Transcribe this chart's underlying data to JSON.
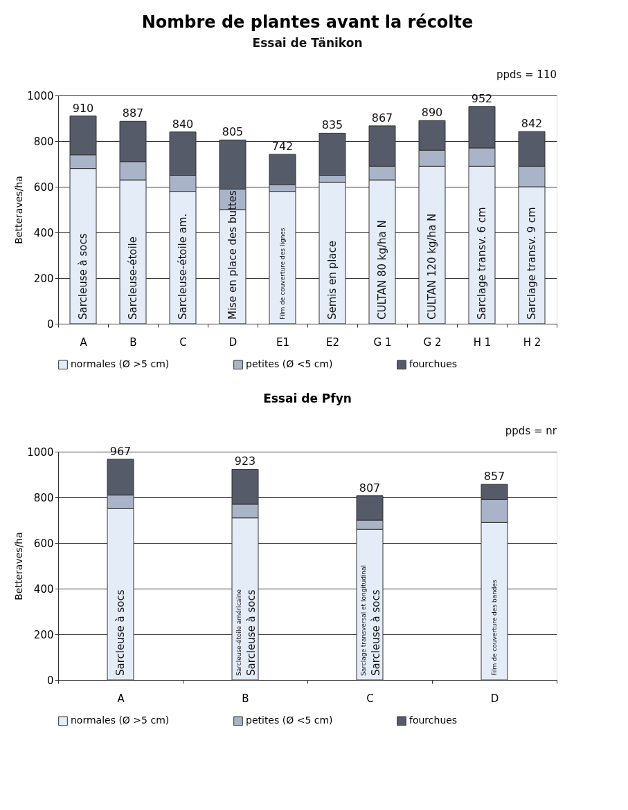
{
  "chart_data": [
    {
      "type": "bar",
      "title": "Nombre de plantes avant la récolte",
      "subtitle": "Essai de Tänikon",
      "ylabel": "Betteraves/ha",
      "stacked": true,
      "categories": [
        "A",
        "B",
        "C",
        "D",
        "E1",
        "E2",
        "G 1",
        "G 2",
        "H 1",
        "H 2"
      ],
      "series": [
        {
          "name": "normales (Ø >5 cm)",
          "color": "#e4ecf7",
          "values": [
            680,
            630,
            580,
            500,
            580,
            620,
            630,
            690,
            690,
            600
          ]
        },
        {
          "name": "petites (Ø <5 cm)",
          "color": "#a9b4c8",
          "values": [
            60,
            80,
            70,
            90,
            30,
            30,
            60,
            70,
            80,
            90
          ]
        },
        {
          "name": "fourchues",
          "color": "#555b68",
          "values": [
            170,
            177,
            190,
            215,
            132,
            185,
            177,
            130,
            182,
            152
          ]
        }
      ],
      "totals": [
        "910",
        "887",
        "840",
        "805",
        "742",
        "835",
        "867",
        "890",
        "952",
        "842"
      ],
      "ylim": [
        0,
        1000
      ],
      "yticks": [
        0,
        200,
        400,
        600,
        800,
        1000
      ],
      "grid": "y",
      "legend": "bottom",
      "annotations": [
        "ppds = 110",
        {
          "text": "Sarcleuse à socs",
          "x": "A",
          "y": 0
        },
        {
          "text": "Sarcleuse-étoile",
          "x": "B",
          "y": 0
        },
        {
          "text": "Sarcleuse-étoile am.",
          "x": "C",
          "y": 0
        },
        {
          "text": "Mise en place des buttes",
          "x": "D",
          "y": 0
        },
        {
          "text": "Film de couverture des lignes",
          "x": "E1",
          "y": 0
        },
        {
          "text": "Semis en place",
          "x": "E2",
          "y": 0
        },
        {
          "text": "CULTAN 80 kg/ha N",
          "x": "G 1",
          "y": 0
        },
        {
          "text": "CULTAN 120 kg/ha N",
          "x": "G 2",
          "y": 0
        },
        {
          "text": "Sarclage transv. 6 cm",
          "x": "H 1",
          "y": 0
        },
        {
          "text": "Sarclage transv. 9 cm",
          "x": "H 2",
          "y": 0
        }
      ]
    },
    {
      "type": "bar",
      "title": "Essai de Pfyn",
      "ylabel": "Betteraves/ha",
      "stacked": true,
      "categories": [
        "A",
        "B",
        "C",
        "D"
      ],
      "series": [
        {
          "name": "normales (Ø >5 cm)",
          "color": "#e4ecf7",
          "values": [
            750,
            710,
            660,
            690
          ]
        },
        {
          "name": "petites (Ø <5 cm)",
          "color": "#a9b4c8",
          "values": [
            60,
            60,
            40,
            100
          ]
        },
        {
          "name": "fourchues",
          "color": "#555b68",
          "values": [
            157,
            153,
            107,
            67
          ]
        }
      ],
      "totals": [
        "967",
        "923",
        "807",
        "857"
      ],
      "ylim": [
        0,
        1000
      ],
      "yticks": [
        0,
        200,
        400,
        600,
        800,
        1000
      ],
      "grid": "y",
      "legend": "bottom",
      "annotations": [
        "ppds = nr",
        {
          "text": "Sarcleuse à socs",
          "x": "A",
          "y": 0
        },
        {
          "text": "Sarcleuse-étoile américaine",
          "x": "B",
          "y": 0
        },
        {
          "text": "Sarcleuse à socs",
          "x": "B",
          "y": 0
        },
        {
          "text": "Sarclage transversal et longitudinal",
          "x": "C",
          "y": 0
        },
        {
          "text": "Sarcleuse à socs",
          "x": "C",
          "y": 0
        },
        {
          "text": "Film de couverture des bandes",
          "x": "D",
          "y": 0
        }
      ]
    }
  ]
}
